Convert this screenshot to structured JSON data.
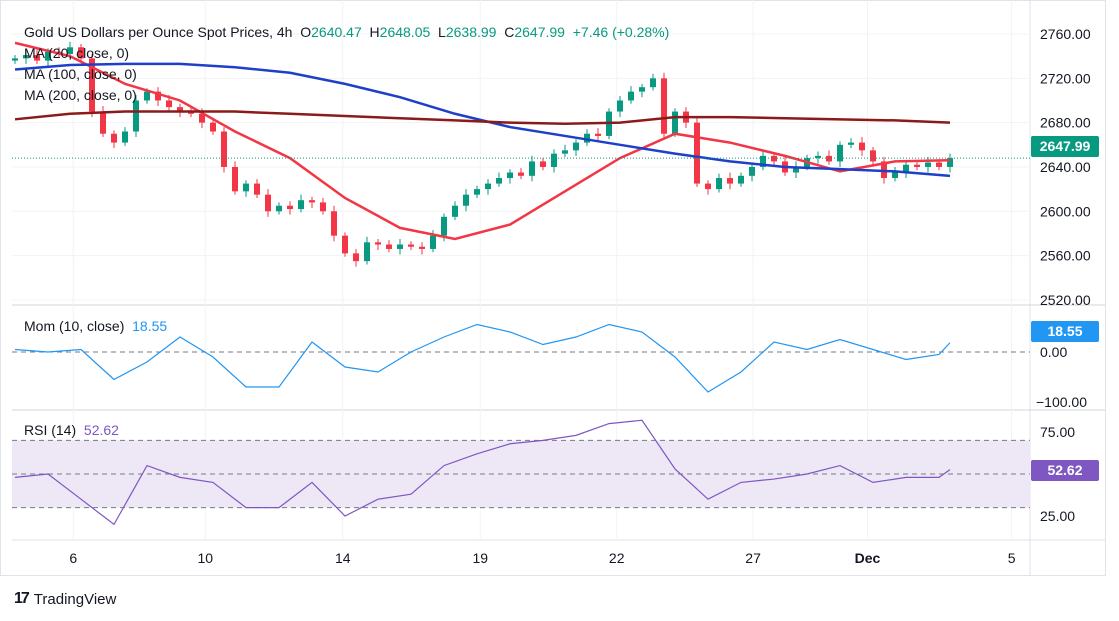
{
  "header": {
    "symbol": "Gold US Dollars per Ounce Spot Prices, 4h",
    "o_label": "O",
    "o": "2640.47",
    "h_label": "H",
    "h": "2648.05",
    "l_label": "L",
    "l": "2638.99",
    "c_label": "C",
    "c": "2647.99",
    "change": "+7.46 (+0.28%)"
  },
  "indicators": {
    "ma20": "MA (20, close, 0)",
    "ma100": "MA (100, close, 0)",
    "ma200": "MA (200, close, 0)",
    "mom": "Mom (10, close)",
    "mom_value": "18.55",
    "rsi": "RSI (14)",
    "rsi_value": "52.62"
  },
  "footer": {
    "brand": "TradingView"
  },
  "colors": {
    "up": "#089981",
    "down": "#f23645",
    "ma20": "#f23645",
    "ma100": "#1e40c8",
    "ma200": "#8b1a1a",
    "mom": "#2196f3",
    "rsi": "#7e57c2",
    "rsi_band": "#ede7f6"
  },
  "chart_data": [
    {
      "type": "candlestick",
      "title": "Gold US Dollars per Ounce Spot Prices, 4h",
      "ylim": [
        2510,
        2770
      ],
      "yticks": [
        "2760.00",
        "2720.00",
        "2680.00",
        "2640.00",
        "2600.00",
        "2560.00",
        "2520.00"
      ],
      "last_price": "2647.99",
      "closes": [
        2738,
        2741,
        2736,
        2744,
        2742,
        2748,
        2738,
        2690,
        2670,
        2662,
        2672,
        2700,
        2708,
        2700,
        2694,
        2690,
        2688,
        2680,
        2672,
        2640,
        2618,
        2625,
        2615,
        2600,
        2605,
        2602,
        2610,
        2608,
        2600,
        2578,
        2562,
        2555,
        2572,
        2570,
        2566,
        2570,
        2568,
        2566,
        2578,
        2595,
        2605,
        2615,
        2620,
        2625,
        2630,
        2635,
        2632,
        2645,
        2640,
        2652,
        2655,
        2662,
        2670,
        2668,
        2690,
        2700,
        2708,
        2712,
        2720,
        2670,
        2690,
        2680,
        2625,
        2620,
        2630,
        2625,
        2632,
        2640,
        2650,
        2645,
        2635,
        2640,
        2648,
        2650,
        2645,
        2660,
        2662,
        2655,
        2645,
        2630,
        2635,
        2642,
        2640,
        2644,
        2640,
        2647.99
      ],
      "ma_sample_step": 5,
      "series": [
        {
          "name": "MA (20, close, 0)",
          "values": [
            2752,
            2740,
            2715,
            2700,
            2672,
            2648,
            2612,
            2585,
            2575,
            2588,
            2618,
            2648,
            2670,
            2662,
            2650,
            2636,
            2645,
            2646
          ]
        },
        {
          "name": "MA (100, close, 0)",
          "values": [
            2728,
            2732,
            2733,
            2733,
            2730,
            2725,
            2715,
            2703,
            2688,
            2676,
            2668,
            2660,
            2652,
            2645,
            2640,
            2638,
            2636,
            2632
          ]
        },
        {
          "name": "MA (200, close, 0)",
          "values": [
            2683,
            2688,
            2690,
            2690,
            2690,
            2688,
            2686,
            2684,
            2682,
            2680,
            2679,
            2680,
            2685,
            2685,
            2684,
            2683,
            2682,
            2680
          ]
        }
      ],
      "xticks": [
        {
          "label": "6",
          "index": 5.3
        },
        {
          "label": "10",
          "index": 17.3
        },
        {
          "label": "14",
          "index": 29.8
        },
        {
          "label": "19",
          "index": 42.3
        },
        {
          "label": "22",
          "index": 54.7
        },
        {
          "label": "27",
          "index": 67.1
        },
        {
          "label": "Dec",
          "index": 77.5,
          "bold": true
        },
        {
          "label": "5",
          "index": 90.6
        }
      ]
    },
    {
      "type": "line",
      "name": "Mom (10, close)",
      "ylim": [
        -110,
        100
      ],
      "yticks": [
        "0.00",
        "−100.00"
      ],
      "points": [
        [
          0,
          5
        ],
        [
          3,
          0
        ],
        [
          6,
          5
        ],
        [
          9,
          -55
        ],
        [
          12,
          -20
        ],
        [
          15,
          30
        ],
        [
          18,
          -10
        ],
        [
          21,
          -70
        ],
        [
          24,
          -70
        ],
        [
          27,
          20
        ],
        [
          30,
          -30
        ],
        [
          33,
          -40
        ],
        [
          36,
          0
        ],
        [
          39,
          30
        ],
        [
          42,
          55
        ],
        [
          45,
          40
        ],
        [
          48,
          15
        ],
        [
          51,
          30
        ],
        [
          54,
          55
        ],
        [
          57,
          40
        ],
        [
          60,
          -10
        ],
        [
          63,
          -80
        ],
        [
          66,
          -40
        ],
        [
          69,
          20
        ],
        [
          72,
          5
        ],
        [
          75,
          25
        ],
        [
          78,
          5
        ],
        [
          81,
          -15
        ],
        [
          84,
          -5
        ],
        [
          85,
          18.55
        ]
      ]
    },
    {
      "type": "line",
      "name": "RSI (14)",
      "ylim": [
        10,
        90
      ],
      "yticks": [
        "75.00",
        "25.00"
      ],
      "bands": [
        30,
        50,
        70
      ],
      "points": [
        [
          0,
          48
        ],
        [
          3,
          50
        ],
        [
          6,
          35
        ],
        [
          9,
          20
        ],
        [
          12,
          55
        ],
        [
          15,
          48
        ],
        [
          18,
          45
        ],
        [
          21,
          30
        ],
        [
          24,
          30
        ],
        [
          27,
          45
        ],
        [
          30,
          25
        ],
        [
          33,
          35
        ],
        [
          36,
          38
        ],
        [
          39,
          55
        ],
        [
          42,
          62
        ],
        [
          45,
          68
        ],
        [
          48,
          70
        ],
        [
          51,
          73
        ],
        [
          54,
          80
        ],
        [
          57,
          82
        ],
        [
          60,
          53
        ],
        [
          63,
          35
        ],
        [
          66,
          45
        ],
        [
          69,
          47
        ],
        [
          72,
          50
        ],
        [
          75,
          55
        ],
        [
          78,
          45
        ],
        [
          81,
          48
        ],
        [
          84,
          48
        ],
        [
          85,
          52.62
        ]
      ]
    }
  ]
}
